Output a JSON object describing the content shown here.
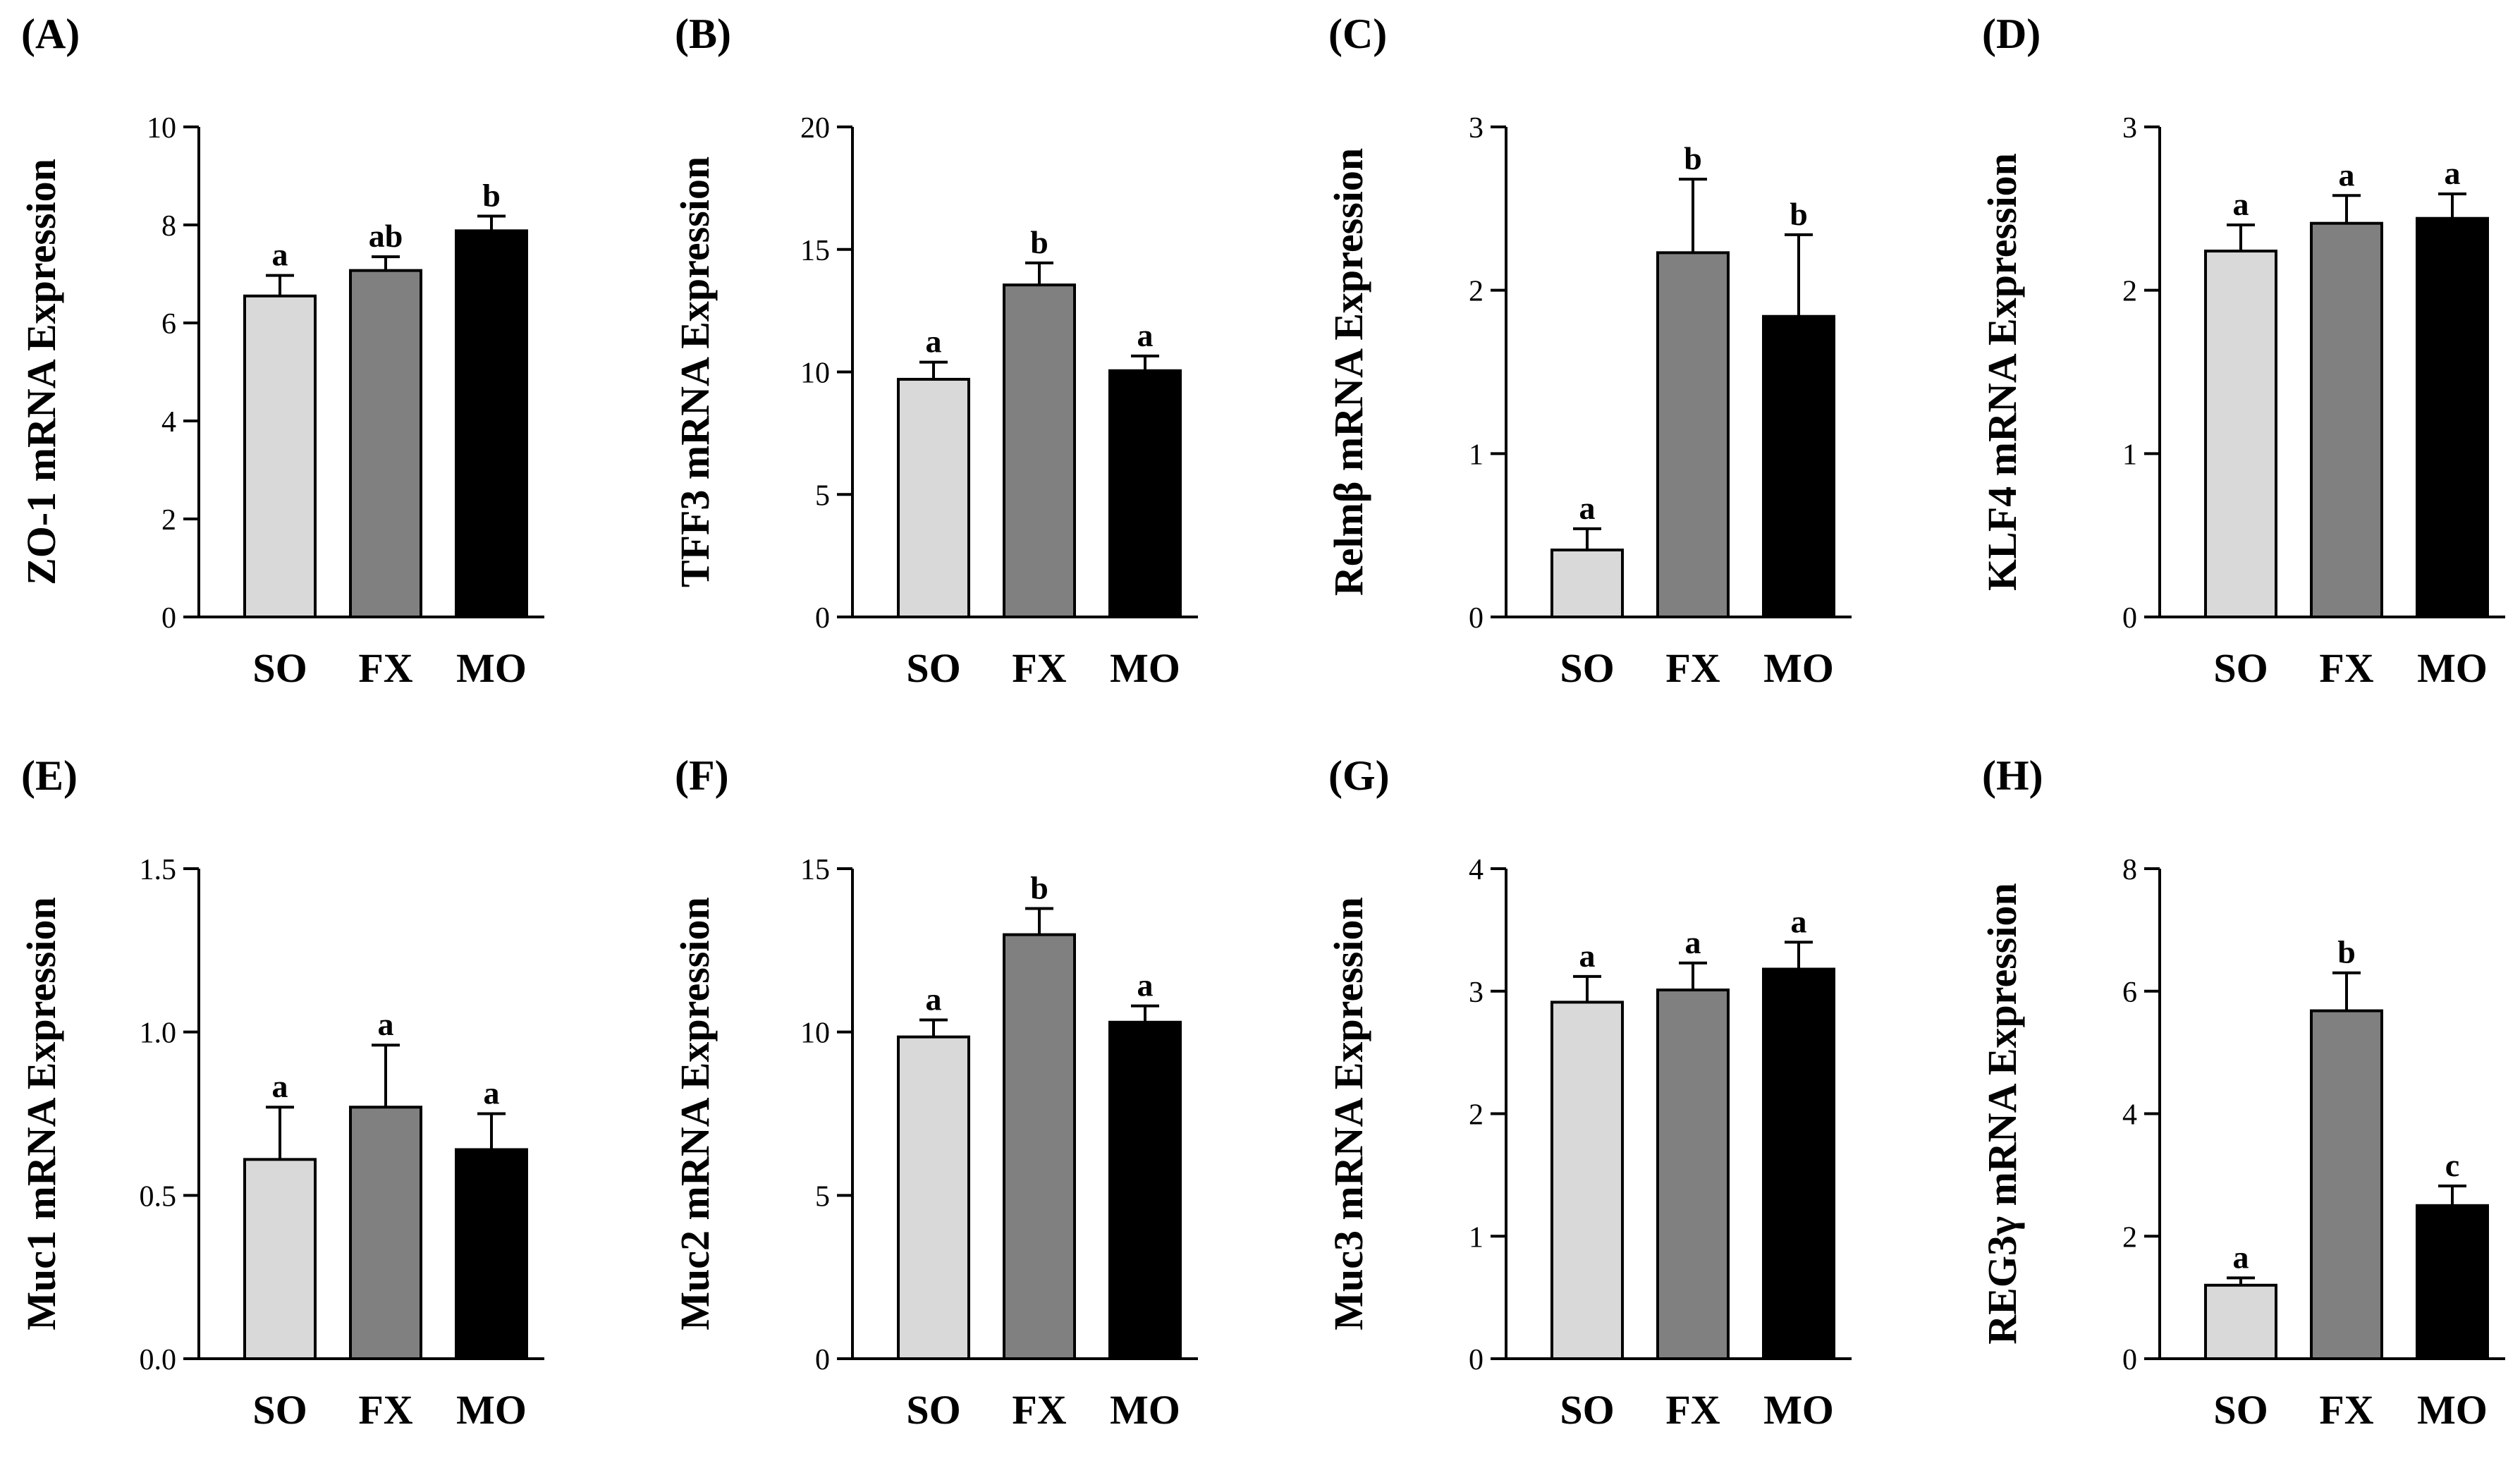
{
  "figure": {
    "group_colors": {
      "SO": "#d9d9d9",
      "FX": "#808080",
      "MO": "#000000"
    }
  },
  "chart_data": [
    {
      "panel": "(A)",
      "type": "bar",
      "categories": [
        "SO",
        "FX",
        "MO"
      ],
      "values": [
        6.55,
        7.07,
        7.88
      ],
      "errors": [
        0.42,
        0.28,
        0.3
      ],
      "significance": [
        "a",
        "ab",
        "b"
      ],
      "ylabel": "ZO-1 mRNA Expression",
      "ylim": [
        0,
        10
      ],
      "yticks": [
        0,
        2,
        4,
        6,
        8,
        10
      ],
      "ytick_labels": [
        "0",
        "2",
        "4",
        "6",
        "8",
        "10"
      ]
    },
    {
      "panel": "(B)",
      "type": "bar",
      "categories": [
        "SO",
        "FX",
        "MO"
      ],
      "values": [
        9.7,
        13.55,
        10.05
      ],
      "errors": [
        0.7,
        0.9,
        0.6
      ],
      "significance": [
        "a",
        "b",
        "a"
      ],
      "ylabel": "TFF3 mRNA Expression",
      "ylim": [
        0,
        20
      ],
      "yticks": [
        0,
        5,
        10,
        15,
        20
      ],
      "ytick_labels": [
        "0",
        "5",
        "10",
        "15",
        "20"
      ]
    },
    {
      "panel": "(C)",
      "type": "bar",
      "categories": [
        "SO",
        "FX",
        "MO"
      ],
      "values": [
        0.41,
        2.23,
        1.84
      ],
      "errors": [
        0.13,
        0.45,
        0.5
      ],
      "significance": [
        "a",
        "b",
        "b"
      ],
      "ylabel": "Relmβ mRNA Expression",
      "ylim": [
        0,
        3
      ],
      "yticks": [
        0,
        1,
        2,
        3
      ],
      "ytick_labels": [
        "0",
        "1",
        "2",
        "3"
      ]
    },
    {
      "panel": "(D)",
      "type": "bar",
      "categories": [
        "SO",
        "FX",
        "MO"
      ],
      "values": [
        2.24,
        2.41,
        2.44
      ],
      "errors": [
        0.16,
        0.17,
        0.15
      ],
      "significance": [
        "a",
        "a",
        "a"
      ],
      "ylabel": "KLF4 mRNA Expression",
      "ylim": [
        0,
        3
      ],
      "yticks": [
        0,
        1,
        2,
        3
      ],
      "ytick_labels": [
        "0",
        "1",
        "2",
        "3"
      ]
    },
    {
      "panel": "(E)",
      "type": "bar",
      "categories": [
        "SO",
        "FX",
        "MO"
      ],
      "values": [
        0.61,
        0.77,
        0.64
      ],
      "errors": [
        0.16,
        0.19,
        0.11
      ],
      "significance": [
        "a",
        "a",
        "a"
      ],
      "ylabel": "Muc1 mRNA Expression",
      "ylim": [
        0,
        1.5
      ],
      "yticks": [
        0,
        0.5,
        1.0,
        1.5
      ],
      "ytick_labels": [
        "0.0",
        "0.5",
        "1.0",
        "1.5"
      ]
    },
    {
      "panel": "(F)",
      "type": "bar",
      "categories": [
        "SO",
        "FX",
        "MO"
      ],
      "values": [
        9.85,
        12.98,
        10.3
      ],
      "errors": [
        0.52,
        0.8,
        0.5
      ],
      "significance": [
        "a",
        "b",
        "a"
      ],
      "ylabel": "Muc2 mRNA Expression",
      "ylim": [
        0,
        15
      ],
      "yticks": [
        0,
        5,
        10,
        15
      ],
      "ytick_labels": [
        "0",
        "5",
        "10",
        "15"
      ]
    },
    {
      "panel": "(G)",
      "type": "bar",
      "categories": [
        "SO",
        "FX",
        "MO"
      ],
      "values": [
        2.91,
        3.01,
        3.18
      ],
      "errors": [
        0.21,
        0.22,
        0.22
      ],
      "significance": [
        "a",
        "a",
        "a"
      ],
      "ylabel": "Muc3 mRNA Expression",
      "ylim": [
        0,
        4
      ],
      "yticks": [
        0,
        1,
        2,
        3,
        4
      ],
      "ytick_labels": [
        "0",
        "1",
        "2",
        "3",
        "4"
      ]
    },
    {
      "panel": "(H)",
      "type": "bar",
      "categories": [
        "SO",
        "FX",
        "MO"
      ],
      "values": [
        1.2,
        5.68,
        2.5
      ],
      "errors": [
        0.12,
        0.62,
        0.32
      ],
      "significance": [
        "a",
        "b",
        "c"
      ],
      "ylabel": "REG3γ mRNA Expression",
      "ylim": [
        0,
        8
      ],
      "yticks": [
        0,
        2,
        4,
        6,
        8
      ],
      "ytick_labels": [
        "0",
        "2",
        "4",
        "6",
        "8"
      ]
    }
  ]
}
